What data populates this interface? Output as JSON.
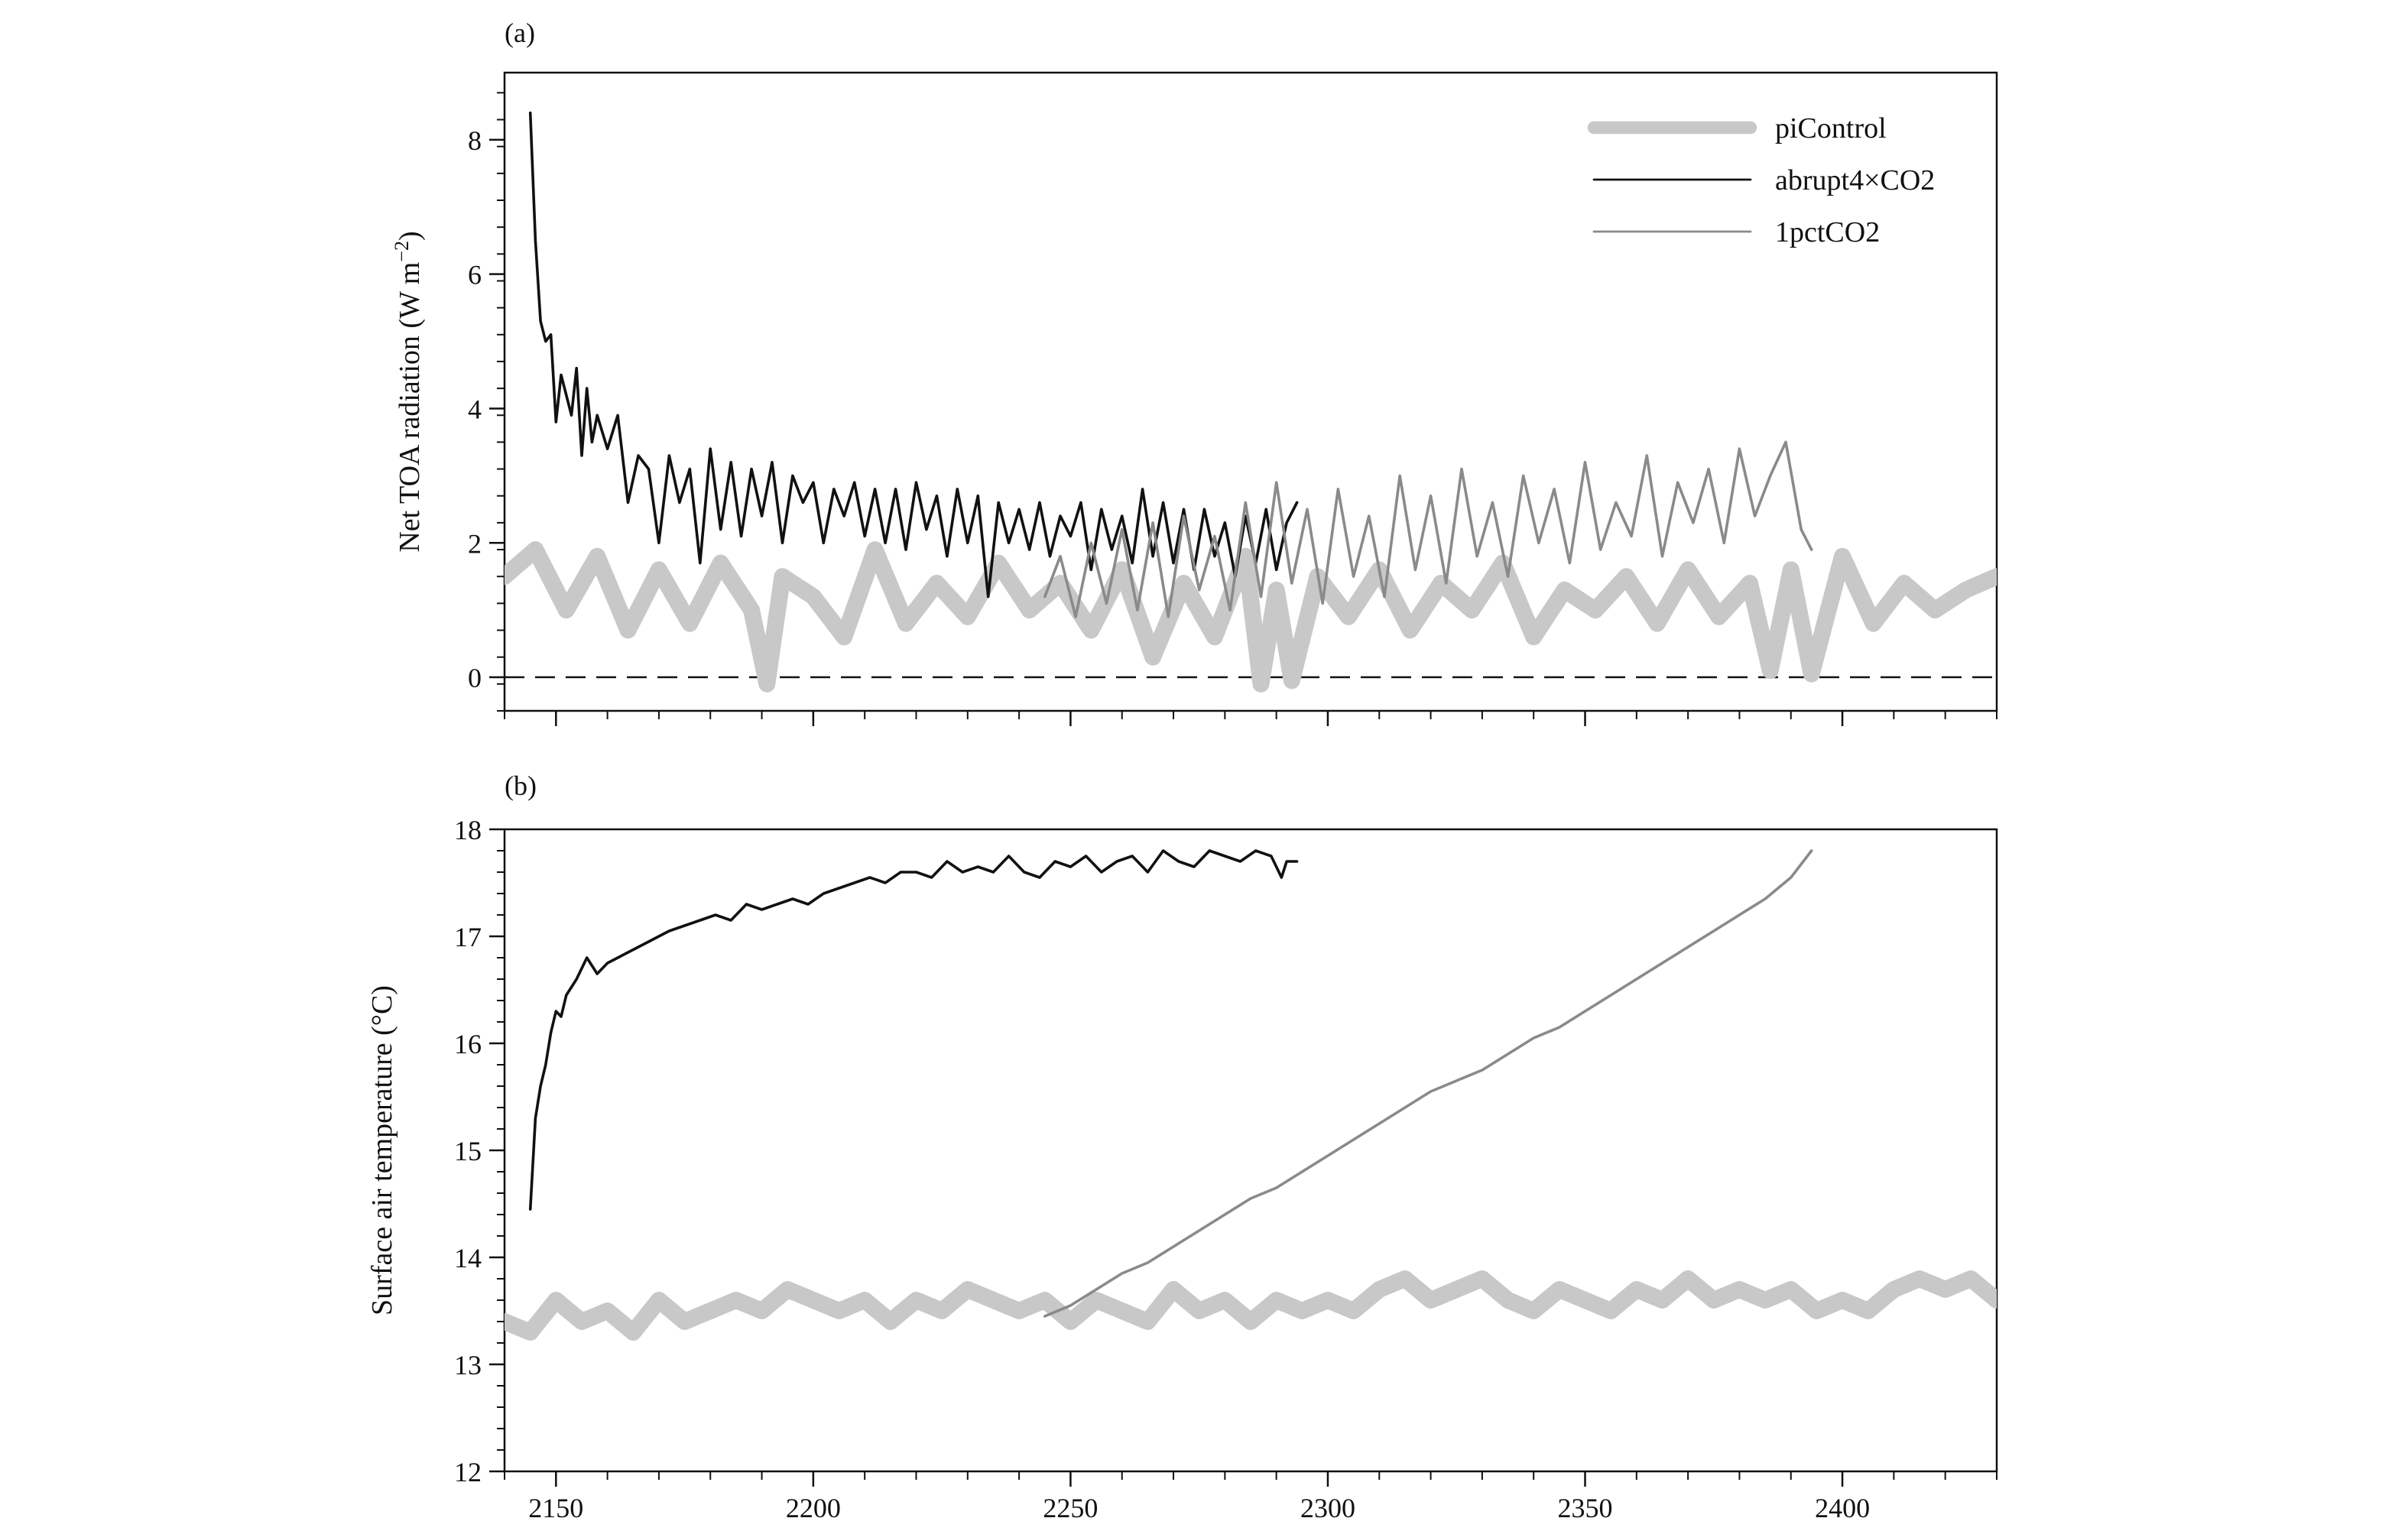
{
  "chart_data": [
    {
      "panel": "(a)",
      "type": "line",
      "ylabel_main": "Net TOA radiation (W m",
      "ylabel_sup": "−2",
      "ylabel_close": ")",
      "xlim": [
        2140,
        2430
      ],
      "ylim": [
        -0.5,
        9
      ],
      "yticks": [
        0,
        2,
        4,
        6,
        8
      ],
      "xticks": [
        2150,
        2200,
        2250,
        2300,
        2350,
        2400
      ],
      "zero_line": true,
      "legend_position": "top-right",
      "series": [
        {
          "name": "piControl",
          "color": "#c8c8c8",
          "style": "thick",
          "x": [
            2140,
            2146,
            2152,
            2158,
            2164,
            2170,
            2176,
            2182,
            2188,
            2191,
            2194,
            2200,
            2206,
            2212,
            2218,
            2224,
            2230,
            2236,
            2242,
            2248,
            2254,
            2260,
            2266,
            2272,
            2278,
            2284,
            2287,
            2290,
            2293,
            2298,
            2304,
            2310,
            2316,
            2322,
            2328,
            2334,
            2340,
            2346,
            2352,
            2358,
            2364,
            2370,
            2376,
            2382,
            2386,
            2390,
            2394,
            2400,
            2406,
            2412,
            2418,
            2424,
            2430
          ],
          "y": [
            1.5,
            1.9,
            1.0,
            1.8,
            0.7,
            1.6,
            0.8,
            1.7,
            1.0,
            -0.1,
            1.5,
            1.2,
            0.6,
            1.9,
            0.8,
            1.4,
            0.9,
            1.7,
            1.0,
            1.4,
            0.7,
            1.6,
            0.3,
            1.4,
            0.6,
            1.8,
            -0.1,
            1.3,
            -0.05,
            1.5,
            0.9,
            1.6,
            0.7,
            1.4,
            1.0,
            1.7,
            0.6,
            1.3,
            1.0,
            1.5,
            0.8,
            1.6,
            0.9,
            1.4,
            0.1,
            1.6,
            0.05,
            1.8,
            0.8,
            1.4,
            1.0,
            1.3,
            1.5
          ]
        },
        {
          "name": "abrupt4×CO2",
          "color": "#111111",
          "style": "thin",
          "x": [
            2145,
            2146,
            2147,
            2148,
            2149,
            2150,
            2151,
            2152,
            2153,
            2154,
            2155,
            2156,
            2157,
            2158,
            2160,
            2162,
            2164,
            2166,
            2168,
            2170,
            2172,
            2174,
            2176,
            2178,
            2180,
            2182,
            2184,
            2186,
            2188,
            2190,
            2192,
            2194,
            2196,
            2198,
            2200,
            2202,
            2204,
            2206,
            2208,
            2210,
            2212,
            2214,
            2216,
            2218,
            2220,
            2222,
            2224,
            2226,
            2228,
            2230,
            2232,
            2234,
            2236,
            2238,
            2240,
            2242,
            2244,
            2246,
            2248,
            2250,
            2252,
            2254,
            2256,
            2258,
            2260,
            2262,
            2264,
            2266,
            2268,
            2270,
            2272,
            2274,
            2276,
            2278,
            2280,
            2282,
            2284,
            2286,
            2288,
            2290,
            2292,
            2294
          ],
          "y": [
            8.4,
            6.5,
            5.3,
            5.0,
            5.1,
            3.8,
            4.5,
            4.2,
            3.9,
            4.6,
            3.3,
            4.3,
            3.5,
            3.9,
            3.4,
            3.9,
            2.6,
            3.3,
            3.1,
            2.0,
            3.3,
            2.6,
            3.1,
            1.7,
            3.4,
            2.2,
            3.2,
            2.1,
            3.1,
            2.4,
            3.2,
            2.0,
            3.0,
            2.6,
            2.9,
            2.0,
            2.8,
            2.4,
            2.9,
            2.1,
            2.8,
            2.0,
            2.8,
            1.9,
            2.9,
            2.2,
            2.7,
            1.8,
            2.8,
            2.0,
            2.7,
            1.2,
            2.6,
            2.0,
            2.5,
            1.9,
            2.6,
            1.8,
            2.4,
            2.1,
            2.6,
            1.6,
            2.5,
            1.9,
            2.4,
            1.7,
            2.8,
            1.8,
            2.6,
            1.7,
            2.5,
            1.6,
            2.5,
            1.8,
            2.3,
            1.5,
            2.4,
            1.7,
            2.5,
            1.6,
            2.3,
            2.6
          ]
        },
        {
          "name": "1pctCO2",
          "color": "#8a8a8a",
          "style": "thin",
          "x": [
            2245,
            2248,
            2251,
            2254,
            2257,
            2260,
            2263,
            2266,
            2269,
            2272,
            2275,
            2278,
            2281,
            2284,
            2287,
            2290,
            2293,
            2296,
            2299,
            2302,
            2305,
            2308,
            2311,
            2314,
            2317,
            2320,
            2323,
            2326,
            2329,
            2332,
            2335,
            2338,
            2341,
            2344,
            2347,
            2350,
            2353,
            2356,
            2359,
            2362,
            2365,
            2368,
            2371,
            2374,
            2377,
            2380,
            2383,
            2386,
            2389,
            2392,
            2394
          ],
          "y": [
            1.2,
            1.8,
            0.9,
            2.0,
            1.1,
            2.2,
            1.0,
            2.3,
            0.9,
            2.4,
            1.3,
            2.1,
            1.0,
            2.6,
            1.2,
            2.9,
            1.4,
            2.5,
            1.1,
            2.8,
            1.5,
            2.4,
            1.2,
            3.0,
            1.6,
            2.7,
            1.4,
            3.1,
            1.8,
            2.6,
            1.5,
            3.0,
            2.0,
            2.8,
            1.7,
            3.2,
            1.9,
            2.6,
            2.1,
            3.3,
            1.8,
            2.9,
            2.3,
            3.1,
            2.0,
            3.4,
            2.4,
            3.0,
            3.5,
            2.2,
            1.9
          ]
        }
      ]
    },
    {
      "panel": "(b)",
      "type": "line",
      "ylabel": "Surface air temperature (°C)",
      "xlim": [
        2140,
        2430
      ],
      "ylim": [
        12,
        18
      ],
      "yticks": [
        12,
        13,
        14,
        15,
        16,
        17,
        18
      ],
      "xticks": [
        2150,
        2200,
        2250,
        2300,
        2350,
        2400
      ],
      "series": [
        {
          "name": "piControl",
          "color": "#c8c8c8",
          "style": "thick",
          "x": [
            2140,
            2145,
            2150,
            2155,
            2160,
            2165,
            2170,
            2175,
            2180,
            2185,
            2190,
            2195,
            2200,
            2205,
            2210,
            2215,
            2220,
            2225,
            2230,
            2235,
            2240,
            2245,
            2250,
            2255,
            2260,
            2265,
            2270,
            2275,
            2280,
            2285,
            2290,
            2295,
            2300,
            2305,
            2310,
            2315,
            2320,
            2325,
            2330,
            2335,
            2340,
            2345,
            2350,
            2355,
            2360,
            2365,
            2370,
            2375,
            2380,
            2385,
            2390,
            2395,
            2400,
            2405,
            2410,
            2415,
            2420,
            2425,
            2430
          ],
          "y": [
            13.4,
            13.3,
            13.6,
            13.4,
            13.5,
            13.3,
            13.6,
            13.4,
            13.5,
            13.6,
            13.5,
            13.7,
            13.6,
            13.5,
            13.6,
            13.4,
            13.6,
            13.5,
            13.7,
            13.6,
            13.5,
            13.6,
            13.4,
            13.6,
            13.5,
            13.4,
            13.7,
            13.5,
            13.6,
            13.4,
            13.6,
            13.5,
            13.6,
            13.5,
            13.7,
            13.8,
            13.6,
            13.7,
            13.8,
            13.6,
            13.5,
            13.7,
            13.6,
            13.5,
            13.7,
            13.6,
            13.8,
            13.6,
            13.7,
            13.6,
            13.7,
            13.5,
            13.6,
            13.5,
            13.7,
            13.8,
            13.7,
            13.8,
            13.6
          ]
        },
        {
          "name": "abrupt4×CO2",
          "color": "#111111",
          "style": "thin",
          "x": [
            2145,
            2146,
            2147,
            2148,
            2149,
            2150,
            2151,
            2152,
            2154,
            2156,
            2158,
            2160,
            2162,
            2164,
            2166,
            2168,
            2170,
            2172,
            2175,
            2178,
            2181,
            2184,
            2187,
            2190,
            2193,
            2196,
            2199,
            2202,
            2205,
            2208,
            2211,
            2214,
            2217,
            2220,
            2223,
            2226,
            2229,
            2232,
            2235,
            2238,
            2241,
            2244,
            2247,
            2250,
            2253,
            2256,
            2259,
            2262,
            2265,
            2268,
            2271,
            2274,
            2277,
            2280,
            2283,
            2286,
            2289,
            2291,
            2292,
            2294
          ],
          "y": [
            14.45,
            15.3,
            15.6,
            15.8,
            16.1,
            16.3,
            16.25,
            16.45,
            16.6,
            16.8,
            16.65,
            16.75,
            16.8,
            16.85,
            16.9,
            16.95,
            17.0,
            17.05,
            17.1,
            17.15,
            17.2,
            17.15,
            17.3,
            17.25,
            17.3,
            17.35,
            17.3,
            17.4,
            17.45,
            17.5,
            17.55,
            17.5,
            17.6,
            17.6,
            17.55,
            17.7,
            17.6,
            17.65,
            17.6,
            17.75,
            17.6,
            17.55,
            17.7,
            17.65,
            17.75,
            17.6,
            17.7,
            17.75,
            17.6,
            17.8,
            17.7,
            17.65,
            17.8,
            17.75,
            17.7,
            17.8,
            17.75,
            17.55,
            17.7,
            17.7
          ]
        },
        {
          "name": "1pctCO2",
          "color": "#8a8a8a",
          "style": "thin",
          "x": [
            2245,
            2250,
            2255,
            2260,
            2265,
            2270,
            2275,
            2280,
            2285,
            2290,
            2295,
            2300,
            2305,
            2310,
            2315,
            2320,
            2325,
            2330,
            2335,
            2340,
            2345,
            2350,
            2355,
            2360,
            2365,
            2370,
            2375,
            2380,
            2385,
            2390,
            2394
          ],
          "y": [
            13.45,
            13.55,
            13.7,
            13.85,
            13.95,
            14.1,
            14.25,
            14.4,
            14.55,
            14.65,
            14.8,
            14.95,
            15.1,
            15.25,
            15.4,
            15.55,
            15.65,
            15.75,
            15.9,
            16.05,
            16.15,
            16.3,
            16.45,
            16.6,
            16.75,
            16.9,
            17.05,
            17.2,
            17.35,
            17.55,
            17.8
          ]
        }
      ]
    }
  ]
}
